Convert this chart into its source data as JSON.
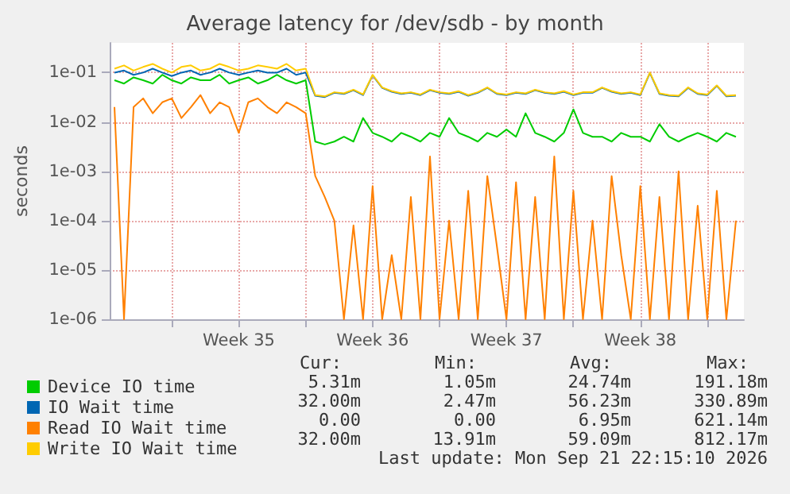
{
  "chart_data": {
    "type": "line",
    "title": "Average latency for /dev/sdb - by month",
    "ylabel": "seconds",
    "log": "y",
    "grid": true,
    "legend": "bottom left",
    "marker": "none",
    "line_style": "solid",
    "xlim": [
      "2026-08-19T18:00",
      "2026-09-21T22:00"
    ],
    "xticks": [
      {
        "value": "2026-08-23T00:00",
        "label": null
      },
      {
        "value": "2026-08-26T12:00",
        "label": "Week 35"
      },
      {
        "value": "2026-08-30T00:00",
        "label": null
      },
      {
        "value": "2026-09-02T12:00",
        "label": "Week 36"
      },
      {
        "value": "2026-09-06T00:00",
        "label": null
      },
      {
        "value": "2026-09-09T12:00",
        "label": "Week 37"
      },
      {
        "value": "2026-09-13T00:00",
        "label": null
      },
      {
        "value": "2026-09-16T12:00",
        "label": "Week 38"
      },
      {
        "value": "2026-09-20T00:00",
        "label": null
      }
    ],
    "ylim": [
      1e-06,
      0.4
    ],
    "yticks": [
      {
        "value": 1e-06,
        "label": "1e-06"
      },
      {
        "value": 1e-05,
        "label": "1e-05"
      },
      {
        "value": 0.0001,
        "label": "1e-04"
      },
      {
        "value": 0.001,
        "label": "1e-03"
      },
      {
        "value": 0.01,
        "label": "1e-02"
      },
      {
        "value": 0.1,
        "label": "1e-01"
      }
    ],
    "x": [
      "2026-08-20T00:00",
      "2026-08-20T12:00",
      "2026-08-21T00:00",
      "2026-08-21T12:00",
      "2026-08-22T00:00",
      "2026-08-22T12:00",
      "2026-08-23T00:00",
      "2026-08-23T12:00",
      "2026-08-24T00:00",
      "2026-08-24T12:00",
      "2026-08-25T00:00",
      "2026-08-25T12:00",
      "2026-08-26T00:00",
      "2026-08-26T12:00",
      "2026-08-27T00:00",
      "2026-08-27T12:00",
      "2026-08-28T00:00",
      "2026-08-28T12:00",
      "2026-08-29T00:00",
      "2026-08-29T12:00",
      "2026-08-30T00:00",
      "2026-08-30T12:00",
      "2026-08-31T00:00",
      "2026-08-31T12:00",
      "2026-09-01T00:00",
      "2026-09-01T12:00",
      "2026-09-02T00:00",
      "2026-09-02T12:00",
      "2026-09-03T00:00",
      "2026-09-03T12:00",
      "2026-09-04T00:00",
      "2026-09-04T12:00",
      "2026-09-05T00:00",
      "2026-09-05T12:00",
      "2026-09-06T00:00",
      "2026-09-06T12:00",
      "2026-09-07T00:00",
      "2026-09-07T12:00",
      "2026-09-08T00:00",
      "2026-09-08T12:00",
      "2026-09-09T00:00",
      "2026-09-09T12:00",
      "2026-09-10T00:00",
      "2026-09-10T12:00",
      "2026-09-11T00:00",
      "2026-09-11T12:00",
      "2026-09-12T00:00",
      "2026-09-12T12:00",
      "2026-09-13T00:00",
      "2026-09-13T12:00",
      "2026-09-14T00:00",
      "2026-09-14T12:00",
      "2026-09-15T00:00",
      "2026-09-15T12:00",
      "2026-09-16T00:00",
      "2026-09-16T12:00",
      "2026-09-17T00:00",
      "2026-09-17T12:00",
      "2026-09-18T00:00",
      "2026-09-18T12:00",
      "2026-09-19T00:00",
      "2026-09-19T12:00",
      "2026-09-20T00:00",
      "2026-09-20T12:00",
      "2026-09-21T00:00",
      "2026-09-21T12:00"
    ],
    "series": [
      {
        "name": "Device IO time",
        "color": "#00cc00",
        "values": [
          0.07,
          0.06,
          0.08,
          0.07,
          0.06,
          0.09,
          0.07,
          0.06,
          0.08,
          0.07,
          0.07,
          0.09,
          0.06,
          0.07,
          0.08,
          0.06,
          0.07,
          0.09,
          0.07,
          0.06,
          0.07,
          0.004,
          0.0035,
          0.004,
          0.005,
          0.004,
          0.012,
          0.006,
          0.005,
          0.004,
          0.006,
          0.005,
          0.004,
          0.006,
          0.005,
          0.012,
          0.006,
          0.005,
          0.004,
          0.006,
          0.005,
          0.007,
          0.005,
          0.015,
          0.006,
          0.005,
          0.004,
          0.006,
          0.018,
          0.006,
          0.005,
          0.005,
          0.004,
          0.006,
          0.005,
          0.005,
          0.004,
          0.009,
          0.005,
          0.004,
          0.005,
          0.006,
          0.005,
          0.004,
          0.006,
          0.005
        ]
      },
      {
        "name": "IO Wait time",
        "color": "#0066b3",
        "values": [
          0.1,
          0.11,
          0.09,
          0.1,
          0.12,
          0.1,
          0.085,
          0.1,
          0.11,
          0.09,
          0.1,
          0.12,
          0.1,
          0.09,
          0.1,
          0.11,
          0.1,
          0.1,
          0.12,
          0.09,
          0.1,
          0.034,
          0.032,
          0.039,
          0.037,
          0.044,
          0.035,
          0.088,
          0.049,
          0.041,
          0.037,
          0.039,
          0.035,
          0.044,
          0.039,
          0.037,
          0.041,
          0.034,
          0.039,
          0.049,
          0.037,
          0.035,
          0.039,
          0.037,
          0.044,
          0.039,
          0.037,
          0.041,
          0.035,
          0.039,
          0.039,
          0.049,
          0.041,
          0.037,
          0.039,
          0.035,
          0.098,
          0.037,
          0.034,
          0.033,
          0.049,
          0.037,
          0.035,
          0.054,
          0.033,
          0.034
        ]
      },
      {
        "name": "Read IO Wait time",
        "color": "#ff8000",
        "values": [
          0.02,
          1e-06,
          0.02,
          0.03,
          0.015,
          0.025,
          0.03,
          0.012,
          0.02,
          0.035,
          0.015,
          0.025,
          0.02,
          0.006,
          0.025,
          0.03,
          0.02,
          0.015,
          0.025,
          0.02,
          0.015,
          0.0008,
          0.0003,
          0.0001,
          1e-06,
          8e-05,
          1e-06,
          0.0005,
          1e-06,
          2e-05,
          1e-06,
          0.0003,
          1e-06,
          0.002,
          1e-06,
          0.0001,
          1e-06,
          0.0004,
          1e-06,
          0.0008,
          3e-05,
          1e-06,
          0.0006,
          1e-06,
          0.0003,
          1e-06,
          0.002,
          1e-06,
          0.0004,
          1e-06,
          0.0001,
          1e-06,
          0.0008,
          2e-05,
          1e-06,
          0.0005,
          1e-06,
          0.0003,
          1e-06,
          0.001,
          1e-06,
          0.0002,
          1e-06,
          0.0004,
          1e-06,
          0.0001
        ]
      },
      {
        "name": "Write IO Wait time",
        "color": "#ffcc00",
        "values": [
          0.12,
          0.14,
          0.11,
          0.13,
          0.15,
          0.12,
          0.1,
          0.13,
          0.14,
          0.11,
          0.12,
          0.15,
          0.13,
          0.11,
          0.12,
          0.14,
          0.13,
          0.12,
          0.15,
          0.11,
          0.12,
          0.035,
          0.033,
          0.04,
          0.038,
          0.045,
          0.036,
          0.09,
          0.05,
          0.042,
          0.038,
          0.04,
          0.036,
          0.045,
          0.04,
          0.038,
          0.042,
          0.035,
          0.04,
          0.05,
          0.038,
          0.036,
          0.04,
          0.038,
          0.045,
          0.04,
          0.038,
          0.042,
          0.036,
          0.04,
          0.04,
          0.05,
          0.042,
          0.038,
          0.04,
          0.036,
          0.1,
          0.038,
          0.035,
          0.034,
          0.05,
          0.038,
          0.036,
          0.055,
          0.034,
          0.035
        ]
      }
    ],
    "annotations": [
      "Cur:",
      "Min:",
      "Avg:",
      "Max:",
      "5.31m",
      "1.05m",
      "24.74m",
      "191.18m",
      "32.00m",
      "2.47m",
      "56.23m",
      "330.89m",
      "0.00",
      "0.00",
      "6.95m",
      "621.14m",
      "32.00m",
      "13.91m",
      "59.09m",
      "812.17m",
      "Last update: Mon Sep 21 22:15:10 2026"
    ]
  }
}
